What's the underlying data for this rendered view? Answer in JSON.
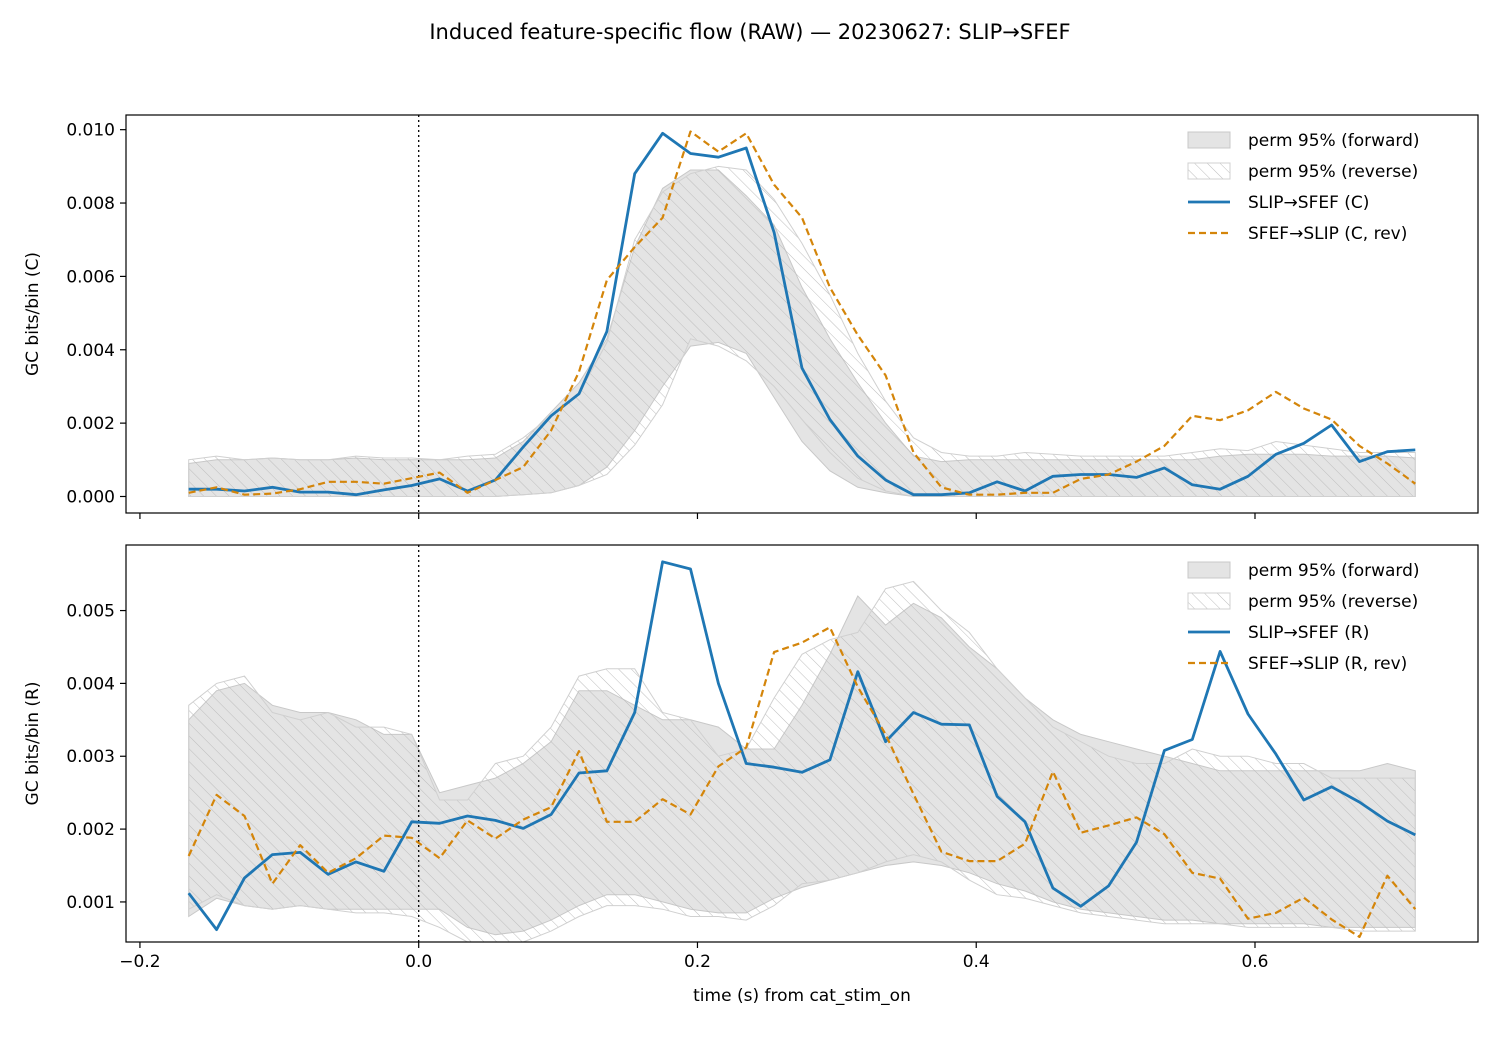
{
  "figure": {
    "title": "Induced feature-specific flow (RAW) — 20230627: SLIP→SFEF",
    "xlabel": "time (s) from cat_stim_on"
  },
  "colors": {
    "forward": "#1f77b4",
    "reverse": "#d4850a",
    "band_fill": "#e4e4e4",
    "band_edge": "#c8c8c8",
    "hatch": "#b8b8b8"
  },
  "chart_data": [
    {
      "type": "line",
      "ylabel": "GC bits/bin (C)",
      "xlim": [
        -0.21,
        0.76
      ],
      "ylim": [
        -0.00045,
        0.0104
      ],
      "xticks": [
        -0.2,
        0.0,
        0.2,
        0.4,
        0.6
      ],
      "xticklabels": [
        "−0.2",
        "0.0",
        "0.2",
        "0.4",
        "0.6"
      ],
      "yticks": [
        0.0,
        0.002,
        0.004,
        0.006,
        0.008,
        0.01
      ],
      "yticklabels": [
        "0.000",
        "0.002",
        "0.004",
        "0.006",
        "0.008",
        "0.010"
      ],
      "vline_x": 0.0,
      "x": [
        -0.165,
        -0.145,
        -0.125,
        -0.105,
        -0.085,
        -0.065,
        -0.045,
        -0.025,
        -0.005,
        0.015,
        0.035,
        0.055,
        0.075,
        0.095,
        0.115,
        0.135,
        0.155,
        0.175,
        0.195,
        0.215,
        0.235,
        0.255,
        0.275,
        0.295,
        0.315,
        0.335,
        0.355,
        0.375,
        0.395,
        0.415,
        0.435,
        0.455,
        0.475,
        0.495,
        0.515,
        0.535,
        0.555,
        0.575,
        0.595,
        0.615,
        0.635,
        0.655,
        0.675,
        0.695,
        0.715
      ],
      "legend": [
        {
          "label": "perm 95% (forward)",
          "kind": "band"
        },
        {
          "label": "perm 95% (reverse)",
          "kind": "hatch"
        },
        {
          "label": "SLIP→SFEF (C)",
          "kind": "solid"
        },
        {
          "label": "SFEF→SLIP (C, rev)",
          "kind": "dashed"
        }
      ],
      "series": [
        {
          "name": "SLIP→SFEF (C)",
          "style": "solid",
          "values": [
            0.0002,
            0.0002,
            0.00015,
            0.00025,
            0.00012,
            0.00012,
            5e-05,
            0.00018,
            0.0003,
            0.00048,
            0.00015,
            0.00045,
            0.00135,
            0.0022,
            0.0028,
            0.0045,
            0.0088,
            0.0099,
            0.00935,
            0.00925,
            0.0095,
            0.0072,
            0.0035,
            0.0021,
            0.0011,
            0.00045,
            5e-05,
            5e-05,
            0.0001,
            0.0004,
            0.00015,
            0.00055,
            0.0006,
            0.0006,
            0.00052,
            0.00078,
            0.00032,
            0.0002,
            0.00055,
            0.00115,
            0.00145,
            0.00195,
            0.00095,
            0.00122,
            0.00127
          ]
        },
        {
          "name": "SFEF→SLIP (C, rev)",
          "style": "dashed",
          "values": [
            0.0001,
            0.00025,
            5e-05,
            8e-05,
            0.0002,
            0.0004,
            0.0004,
            0.00035,
            0.0005,
            0.00065,
            0.0001,
            0.00045,
            0.0008,
            0.0018,
            0.0034,
            0.0059,
            0.0068,
            0.0076,
            0.00995,
            0.0094,
            0.0099,
            0.0085,
            0.0076,
            0.0057,
            0.0044,
            0.0033,
            0.0012,
            0.00025,
            5e-05,
            5e-05,
            0.0001,
            0.0001,
            0.00048,
            0.0006,
            0.00095,
            0.00138,
            0.0022,
            0.00208,
            0.00235,
            0.00285,
            0.0024,
            0.0021,
            0.00138,
            0.0009,
            0.00035
          ]
        }
      ],
      "band_forward": {
        "lower": [
          0.0,
          0.0,
          0.0,
          0.0,
          0.0,
          0.0,
          0.0,
          0.0,
          0.0,
          0.0,
          0.0,
          0.0,
          5e-05,
          0.0001,
          0.0003,
          0.0008,
          0.0018,
          0.003,
          0.0041,
          0.0042,
          0.0039,
          0.0027,
          0.0015,
          0.0007,
          0.00025,
          0.0001,
          0.0,
          0.0,
          0.0,
          0.0,
          0.0,
          0.0,
          0.0,
          0.0,
          0.0,
          0.0,
          0.0,
          0.0,
          0.0,
          0.0,
          0.0,
          0.0,
          0.0,
          0.0,
          0.0
        ],
        "upper": [
          0.0009,
          0.001,
          0.001,
          0.00105,
          0.001,
          0.001,
          0.00105,
          0.001,
          0.001,
          0.001,
          0.001,
          0.00105,
          0.0015,
          0.0023,
          0.0031,
          0.0043,
          0.0068,
          0.0084,
          0.0089,
          0.0089,
          0.0082,
          0.0074,
          0.0057,
          0.0043,
          0.0031,
          0.002,
          0.0011,
          0.00095,
          0.001,
          0.001,
          0.001,
          0.001,
          0.001,
          0.001,
          0.001,
          0.001,
          0.001,
          0.0011,
          0.00115,
          0.00115,
          0.00115,
          0.0011,
          0.0011,
          0.0011,
          0.00105
        ]
      },
      "band_reverse": {
        "lower": [
          0.0,
          0.0,
          0.0,
          0.0,
          0.0,
          0.0,
          0.0,
          0.0,
          0.0,
          0.0,
          0.0,
          0.0,
          5e-05,
          0.0001,
          0.0003,
          0.0006,
          0.0014,
          0.0025,
          0.0043,
          0.0041,
          0.0037,
          0.003,
          0.0021,
          0.0012,
          0.0005,
          0.00015,
          0.0,
          0.0,
          0.0,
          0.0,
          0.0,
          0.0,
          0.0,
          0.0,
          0.0,
          0.0,
          0.0,
          0.0,
          0.0,
          0.0,
          0.0,
          0.0,
          0.0,
          0.0,
          0.0
        ],
        "upper": [
          0.001,
          0.0011,
          0.001,
          0.00105,
          0.001,
          0.001,
          0.0011,
          0.00105,
          0.00105,
          0.001,
          0.0011,
          0.00115,
          0.0016,
          0.0022,
          0.0028,
          0.0042,
          0.007,
          0.0083,
          0.0088,
          0.009,
          0.0089,
          0.0081,
          0.0069,
          0.0055,
          0.0039,
          0.0026,
          0.0016,
          0.0012,
          0.0011,
          0.0011,
          0.0012,
          0.00115,
          0.0011,
          0.0011,
          0.0011,
          0.0011,
          0.0012,
          0.0013,
          0.00125,
          0.0015,
          0.0014,
          0.0013,
          0.0012,
          0.0012,
          0.0012
        ]
      }
    },
    {
      "type": "line",
      "ylabel": "GC bits/bin (R)",
      "xlim": [
        -0.21,
        0.76
      ],
      "ylim": [
        0.00045,
        0.0059
      ],
      "xticks": [
        -0.2,
        0.0,
        0.2,
        0.4,
        0.6
      ],
      "xticklabels": [
        "−0.2",
        "0.0",
        "0.2",
        "0.4",
        "0.6"
      ],
      "yticks": [
        0.001,
        0.002,
        0.003,
        0.004,
        0.005
      ],
      "yticklabels": [
        "0.001",
        "0.002",
        "0.003",
        "0.004",
        "0.005"
      ],
      "vline_x": 0.0,
      "x": [
        -0.165,
        -0.145,
        -0.125,
        -0.105,
        -0.085,
        -0.065,
        -0.045,
        -0.025,
        -0.005,
        0.015,
        0.035,
        0.055,
        0.075,
        0.095,
        0.115,
        0.135,
        0.155,
        0.175,
        0.195,
        0.215,
        0.235,
        0.255,
        0.275,
        0.295,
        0.315,
        0.335,
        0.355,
        0.375,
        0.395,
        0.415,
        0.435,
        0.455,
        0.475,
        0.495,
        0.515,
        0.535,
        0.555,
        0.575,
        0.595,
        0.615,
        0.635,
        0.655,
        0.675,
        0.695,
        0.715
      ],
      "legend": [
        {
          "label": "perm 95% (forward)",
          "kind": "band"
        },
        {
          "label": "perm 95% (reverse)",
          "kind": "hatch"
        },
        {
          "label": "SLIP→SFEF (R)",
          "kind": "solid"
        },
        {
          "label": "SFEF→SLIP (R, rev)",
          "kind": "dashed"
        }
      ],
      "series": [
        {
          "name": "SLIP→SFEF (R)",
          "style": "solid",
          "values": [
            0.00112,
            0.00062,
            0.00133,
            0.00165,
            0.00168,
            0.00138,
            0.00155,
            0.00142,
            0.0021,
            0.00208,
            0.00218,
            0.00212,
            0.00201,
            0.0022,
            0.00277,
            0.0028,
            0.0036,
            0.00567,
            0.00557,
            0.004,
            0.0029,
            0.00285,
            0.00278,
            0.00295,
            0.00416,
            0.0032,
            0.0036,
            0.00344,
            0.00343,
            0.00245,
            0.0021,
            0.00119,
            0.00094,
            0.00122,
            0.00182,
            0.00308,
            0.00323,
            0.00444,
            0.00358,
            0.00303,
            0.0024,
            0.00258,
            0.00237,
            0.00211,
            0.00192
          ]
        },
        {
          "name": "SFEF→SLIP (R, rev)",
          "style": "dashed",
          "values": [
            0.00163,
            0.00247,
            0.00218,
            0.00125,
            0.00178,
            0.0014,
            0.0016,
            0.00191,
            0.00188,
            0.0016,
            0.00212,
            0.00187,
            0.00213,
            0.0023,
            0.00307,
            0.0021,
            0.0021,
            0.00241,
            0.0022,
            0.00286,
            0.00312,
            0.00443,
            0.00456,
            0.00477,
            0.00395,
            0.0033,
            0.00248,
            0.00169,
            0.00156,
            0.00156,
            0.0018,
            0.00279,
            0.00195,
            0.00205,
            0.00216,
            0.00193,
            0.0014,
            0.00132,
            0.00077,
            0.00085,
            0.00106,
            0.00076,
            0.00052,
            0.00136,
            0.0009
          ]
        }
      ],
      "band_forward": {
        "lower": [
          0.0008,
          0.00105,
          0.00095,
          0.0009,
          0.00095,
          0.0009,
          0.0009,
          0.0009,
          0.0009,
          0.0009,
          0.00065,
          0.00055,
          0.0006,
          0.00075,
          0.00095,
          0.0011,
          0.0011,
          0.001,
          0.0009,
          0.00085,
          0.00085,
          0.00105,
          0.0012,
          0.0013,
          0.0014,
          0.0015,
          0.00155,
          0.0015,
          0.0014,
          0.00125,
          0.00115,
          0.001,
          0.0009,
          0.00085,
          0.0008,
          0.00075,
          0.00075,
          0.0007,
          0.0007,
          0.0007,
          0.0007,
          0.00065,
          0.00065,
          0.00065,
          0.00065
        ],
        "upper": [
          0.0035,
          0.0039,
          0.004,
          0.0037,
          0.0036,
          0.0036,
          0.0035,
          0.0033,
          0.0033,
          0.0025,
          0.0026,
          0.0027,
          0.0029,
          0.0032,
          0.0039,
          0.0039,
          0.0037,
          0.0035,
          0.0035,
          0.0034,
          0.0031,
          0.0031,
          0.0037,
          0.0044,
          0.0052,
          0.0048,
          0.0051,
          0.0049,
          0.0045,
          0.0042,
          0.0038,
          0.0035,
          0.0033,
          0.0032,
          0.0031,
          0.003,
          0.0029,
          0.0028,
          0.0028,
          0.0028,
          0.0028,
          0.0028,
          0.0028,
          0.0029,
          0.0028
        ]
      },
      "band_reverse": {
        "lower": [
          0.0009,
          0.0011,
          0.00095,
          0.0009,
          0.00095,
          0.0009,
          0.00085,
          0.00085,
          0.0008,
          0.00065,
          0.00045,
          0.0004,
          0.00045,
          0.0006,
          0.0008,
          0.00095,
          0.00095,
          0.0009,
          0.0008,
          0.0008,
          0.00075,
          0.00095,
          0.00125,
          0.0013,
          0.0014,
          0.00155,
          0.00165,
          0.00155,
          0.0013,
          0.0011,
          0.00105,
          0.00095,
          0.00085,
          0.0008,
          0.00075,
          0.0007,
          0.0007,
          0.0007,
          0.00065,
          0.00065,
          0.00065,
          0.00065,
          0.0006,
          0.0006,
          0.0006
        ],
        "upper": [
          0.0037,
          0.004,
          0.0041,
          0.0036,
          0.0035,
          0.0036,
          0.0034,
          0.0034,
          0.0033,
          0.0024,
          0.0024,
          0.0029,
          0.003,
          0.0034,
          0.0041,
          0.0042,
          0.0042,
          0.0036,
          0.0035,
          0.003,
          0.0031,
          0.0038,
          0.0044,
          0.0046,
          0.0047,
          0.0053,
          0.0054,
          0.005,
          0.0047,
          0.0042,
          0.0038,
          0.0034,
          0.0032,
          0.003,
          0.0029,
          0.0029,
          0.0031,
          0.003,
          0.003,
          0.0029,
          0.0029,
          0.0027,
          0.0027,
          0.0027,
          0.0027
        ]
      }
    }
  ]
}
